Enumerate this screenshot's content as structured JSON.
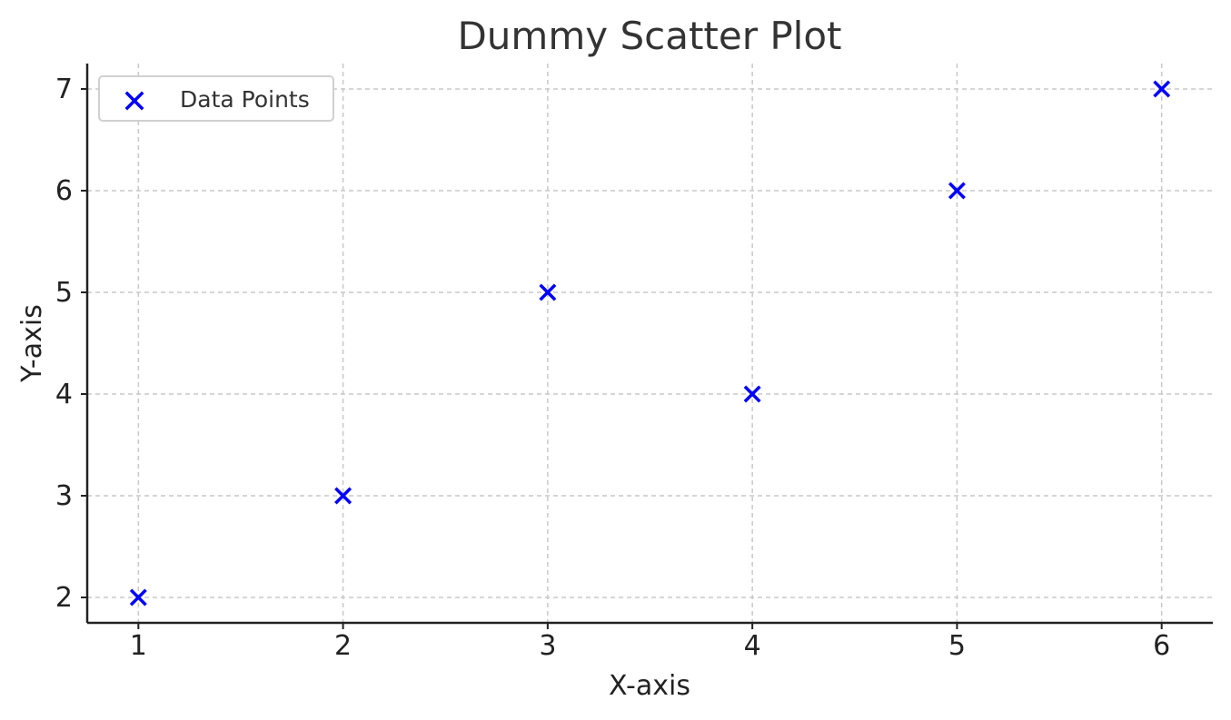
{
  "chart_data": {
    "type": "scatter",
    "title": "Dummy Scatter Plot",
    "xlabel": "X-axis",
    "ylabel": "Y-axis",
    "xlim": [
      0.75,
      6.25
    ],
    "ylim": [
      1.75,
      7.25
    ],
    "x_ticks": [
      1,
      2,
      3,
      4,
      5,
      6
    ],
    "y_ticks": [
      2,
      3,
      4,
      5,
      6,
      7
    ],
    "grid": true,
    "legend_placement": "top-left",
    "series": [
      {
        "name": "Data Points",
        "marker": "x",
        "color": "#0000ff",
        "x": [
          1,
          2,
          3,
          4,
          5,
          6
        ],
        "y": [
          2,
          3,
          5,
          4,
          6,
          7
        ]
      }
    ]
  }
}
